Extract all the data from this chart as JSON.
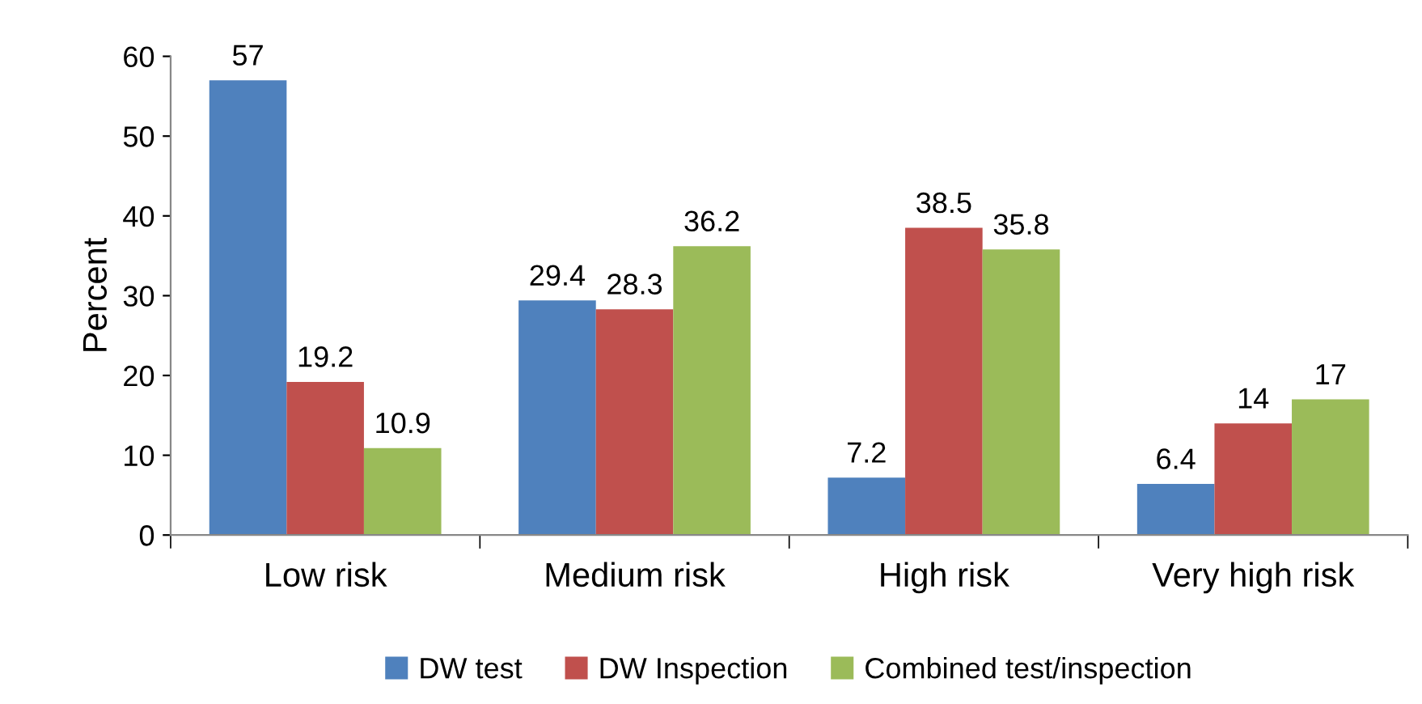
{
  "chart_data": {
    "type": "bar",
    "ylabel": "Percent",
    "categories": [
      "Low risk",
      "Medium risk",
      "High risk",
      "Very high risk"
    ],
    "series": [
      {
        "name": "DW test",
        "color": "#4f81bd",
        "values": [
          57,
          29.4,
          7.2,
          6.4
        ]
      },
      {
        "name": "DW Inspection",
        "color": "#c0504d",
        "values": [
          19.2,
          28.3,
          38.5,
          14
        ]
      },
      {
        "name": "Combined test/inspection",
        "color": "#9bbb59",
        "values": [
          10.9,
          36.2,
          35.8,
          17
        ]
      }
    ],
    "ylim": [
      0,
      60
    ],
    "yticks": [
      0,
      10,
      20,
      30,
      40,
      50,
      60
    ],
    "data_labels": true,
    "grid": false,
    "legend": "bottom"
  }
}
